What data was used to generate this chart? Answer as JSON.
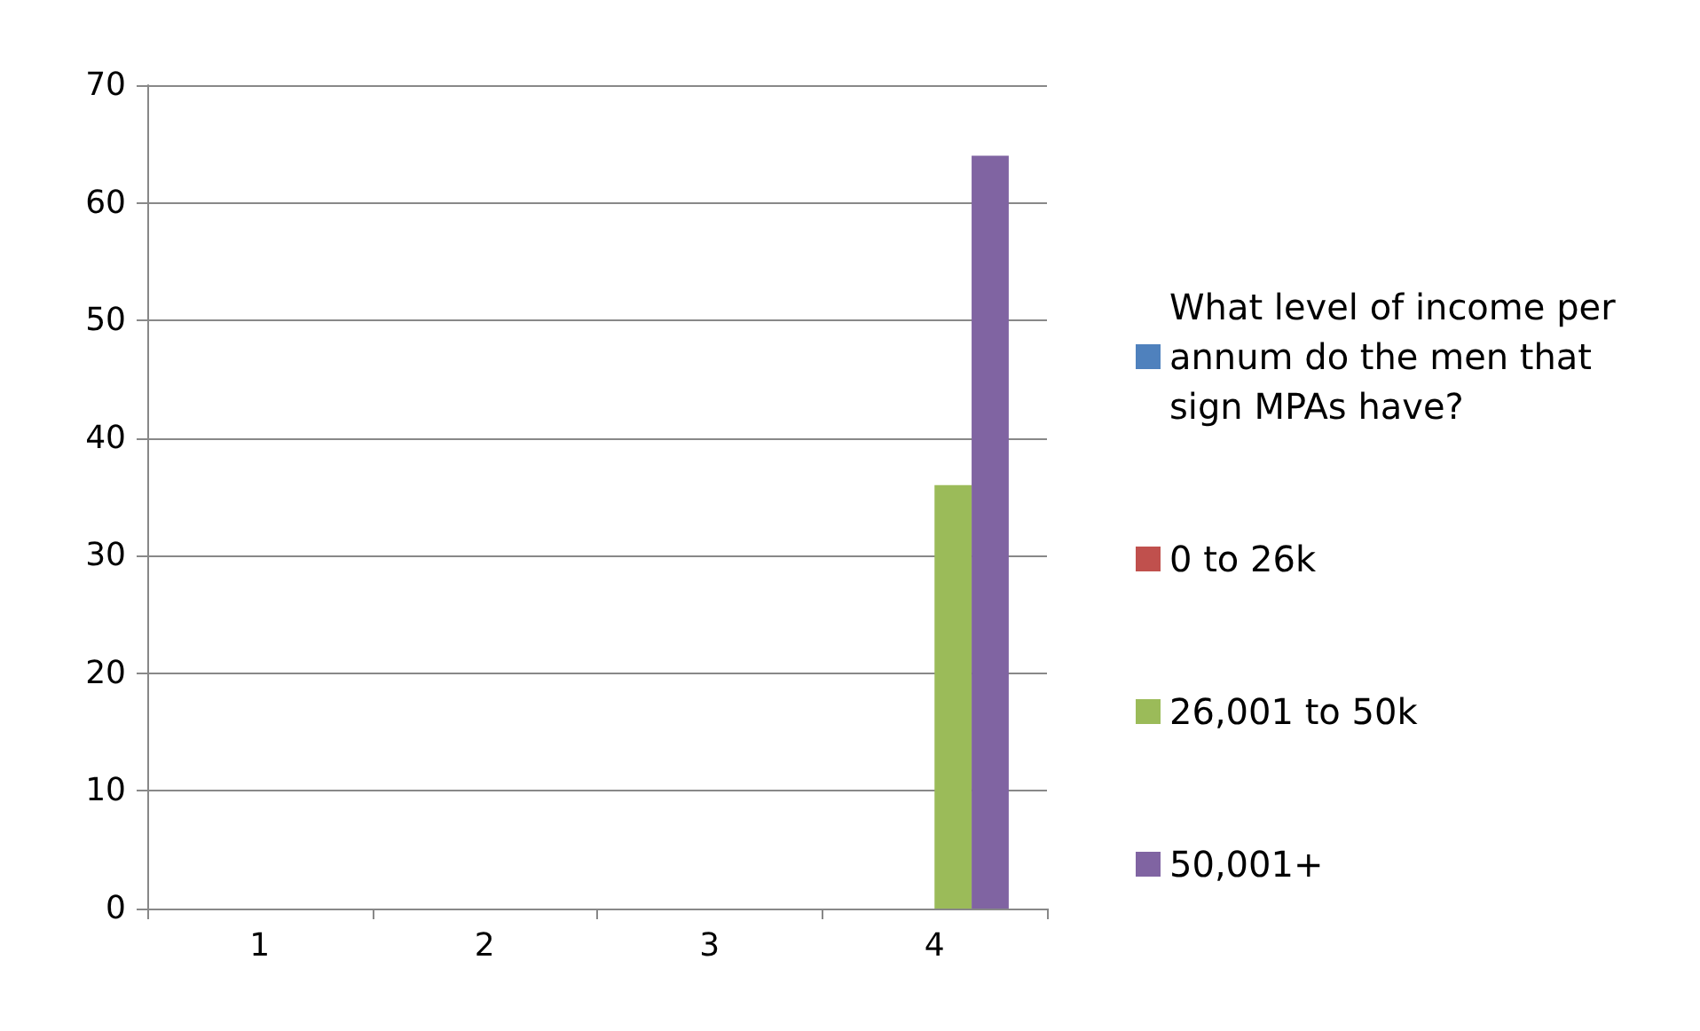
{
  "chart_data": {
    "type": "bar",
    "categories": [
      "1",
      "2",
      "3",
      "4"
    ],
    "series": [
      {
        "name": "What level of income per annum do the men that sign MPAs have?",
        "color": "#4f81bd",
        "values": [
          0,
          0,
          0,
          0
        ]
      },
      {
        "name": "0 to 26k",
        "color": "#c0504d",
        "values": [
          0,
          0,
          0,
          0
        ]
      },
      {
        "name": "26,001 to 50k",
        "color": "#9bbb59",
        "values": [
          0,
          0,
          0,
          36
        ]
      },
      {
        "name": "50,001+",
        "color": "#8064a2",
        "values": [
          0,
          0,
          0,
          64
        ]
      }
    ],
    "ylim": [
      0,
      70
    ],
    "yticks": [
      0,
      10,
      20,
      30,
      40,
      50,
      60,
      70
    ],
    "grid": "y",
    "legend": "right"
  }
}
